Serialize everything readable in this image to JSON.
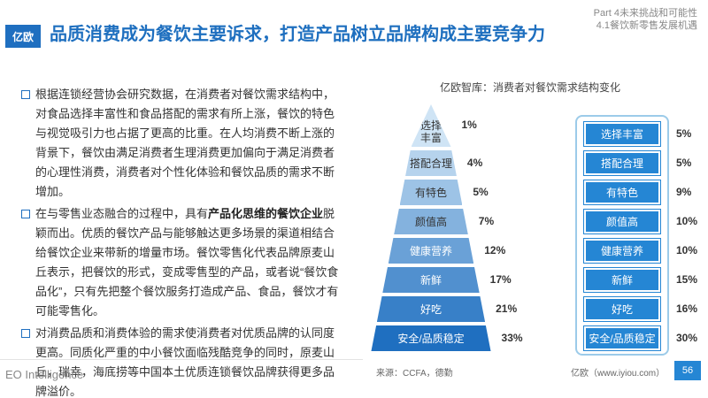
{
  "header": {
    "logo": "亿欧",
    "title": "品质消费成为餐饮主要诉求，打造产品树立品牌构成主要竞争力",
    "part": "Part 4未来挑战和可能性",
    "section": "4.1餐饮新零售发展机遇"
  },
  "bullets": [
    [
      {
        "text": "根据连锁经营协会研究数据，在消费者对餐饮需求结构中，对食品选择丰富性和食品搭配的需求有所上涨，餐饮的特色与视觉吸引力也占据了更高的比重。在人均消费不断上涨的背景下，餐饮由满足消费者生理消费更加偏向于满足消费者的心理性消费，消费者对个性化体验和餐饮品质的需求不断增加。",
        "bold": false
      }
    ],
    [
      {
        "text": "在与零售业态融合的过程中，具有",
        "bold": false
      },
      {
        "text": "产品化思维的餐饮企业",
        "bold": true
      },
      {
        "text": "脱颖而出。优质的餐饮产品与能够触达更多场景的渠道相结合给餐饮企业来带新的增量市场。餐饮零售化代表品牌原麦山丘表示，把餐饮的形式，变成零售型的产品，或者说“餐饮食品化”，只有先把整个餐饮服务打造成产品、食品，餐饮才有可能零售化。",
        "bold": false
      }
    ],
    [
      {
        "text": "对消费品质和消费体验的需求使消费者对优质品牌的认同度更高。同质化严重的中小餐饮面临残酷竞争的同时，原麦山丘，瑞幸，海底捞等中国本土优质连锁餐饮品牌获得更多品牌溢价。",
        "bold": false
      }
    ]
  ],
  "chart_title": "亿欧智库：消费者对餐饮需求结构变化",
  "chart_data": [
    {
      "type": "pyramid",
      "categories": [
        "选择丰富",
        "搭配合理",
        "有特色",
        "颜值高",
        "健康营养",
        "新鲜",
        "好吃",
        "安全/品质稳定"
      ],
      "values": [
        1,
        4,
        5,
        7,
        12,
        17,
        21,
        33
      ],
      "value_labels": [
        "1%",
        "4%",
        "5%",
        "7%",
        "12%",
        "17%",
        "21%",
        "33%"
      ],
      "color": "#1f6fc0"
    },
    {
      "type": "blocks",
      "categories": [
        "选择丰富",
        "搭配合理",
        "有特色",
        "颜值高",
        "健康营养",
        "新鲜",
        "好吃",
        "安全/品质稳定"
      ],
      "values": [
        5,
        5,
        9,
        10,
        10,
        15,
        16,
        30
      ],
      "value_labels": [
        "5%",
        "5%",
        "9%",
        "10%",
        "10%",
        "15%",
        "16%",
        "30%"
      ],
      "color": "#2586d4"
    }
  ],
  "source": "来源：CCFA，德勤",
  "footer": {
    "brand": "EO Intelligence",
    "site": "亿欧（www.iyiou.com）",
    "page": "56"
  }
}
